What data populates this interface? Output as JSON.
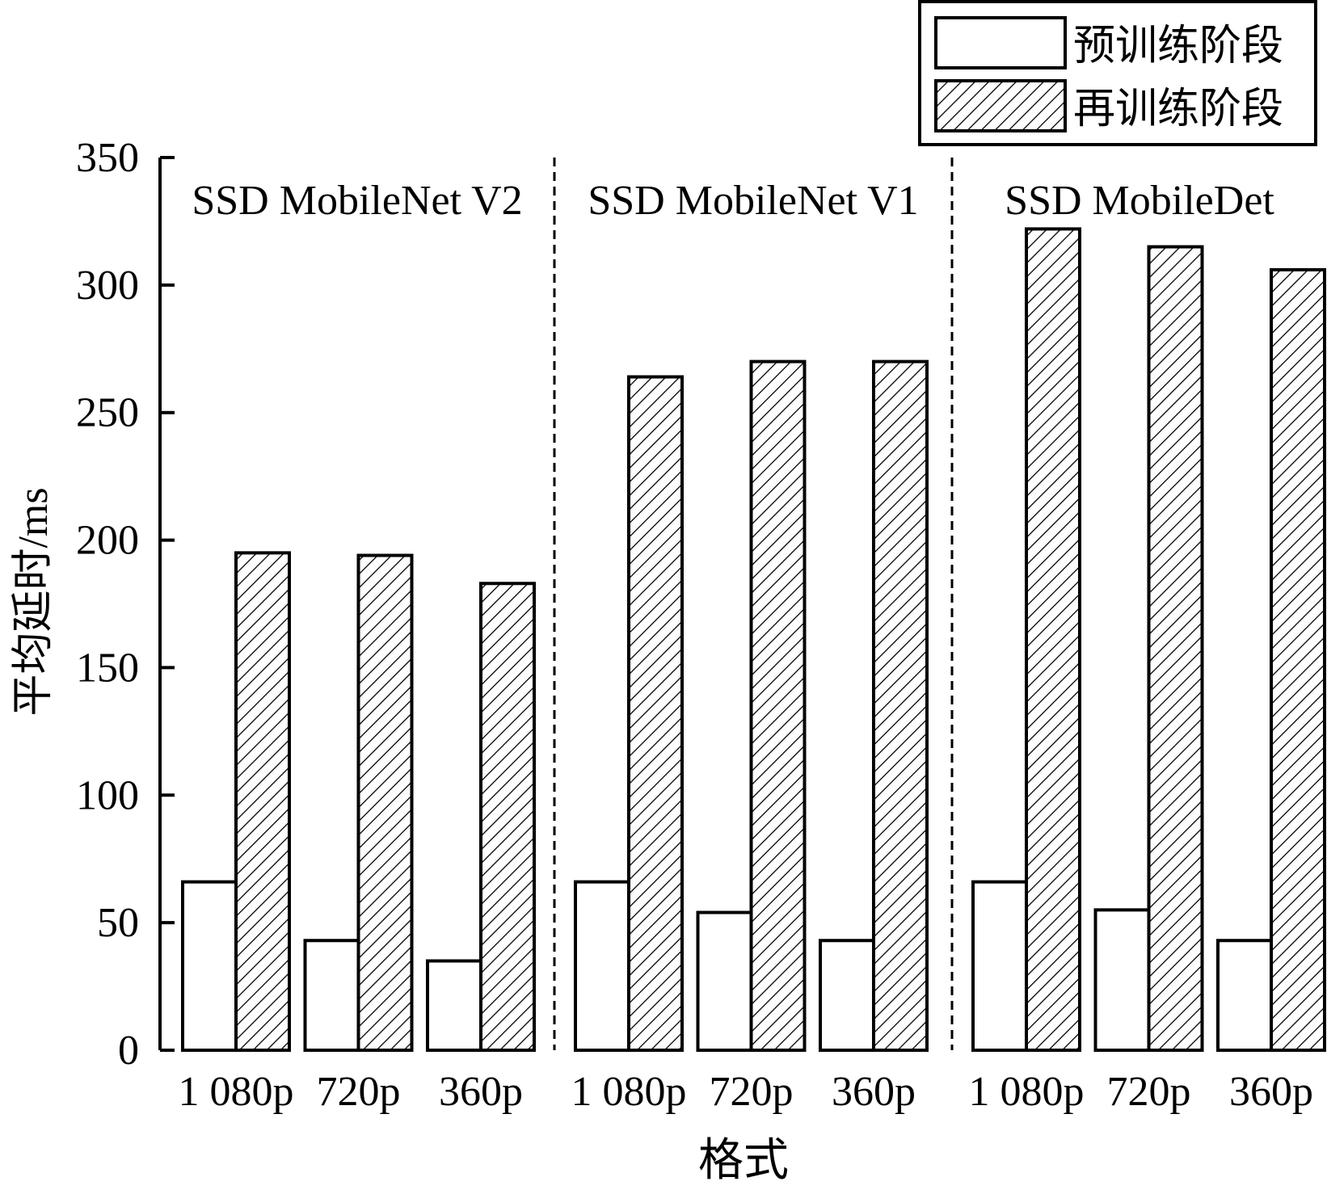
{
  "chart_data": {
    "type": "bar",
    "xlabel": "格式",
    "ylabel": "平均延时/ms",
    "ylim": [
      0,
      350
    ],
    "yticks": [
      0,
      50,
      100,
      150,
      200,
      250,
      300,
      350
    ],
    "grid": false,
    "legend_position": "top-right",
    "groups": [
      {
        "name": "SSD MobileNet V2",
        "categories": [
          "1 080p",
          "720p",
          "360p"
        ],
        "series": [
          {
            "name": "预训练阶段",
            "values": [
              66,
              43,
              35
            ]
          },
          {
            "name": "再训练阶段",
            "values": [
              195,
              194,
              183
            ]
          }
        ]
      },
      {
        "name": "SSD MobileNet V1",
        "categories": [
          "1 080p",
          "720p",
          "360p"
        ],
        "series": [
          {
            "name": "预训练阶段",
            "values": [
              66,
              54,
              43
            ]
          },
          {
            "name": "再训练阶段",
            "values": [
              264,
              270,
              270
            ]
          }
        ]
      },
      {
        "name": "SSD MobileDet",
        "categories": [
          "1 080p",
          "720p",
          "360p"
        ],
        "series": [
          {
            "name": "预训练阶段",
            "values": [
              66,
              55,
              43
            ]
          },
          {
            "name": "再训练阶段",
            "values": [
              322,
              315,
              306
            ]
          }
        ]
      }
    ],
    "series_styles": [
      {
        "name": "预训练阶段",
        "fill": "none"
      },
      {
        "name": "再训练阶段",
        "fill": "hatch"
      }
    ]
  },
  "colors": {
    "stroke": "#000000",
    "background": "#ffffff"
  }
}
